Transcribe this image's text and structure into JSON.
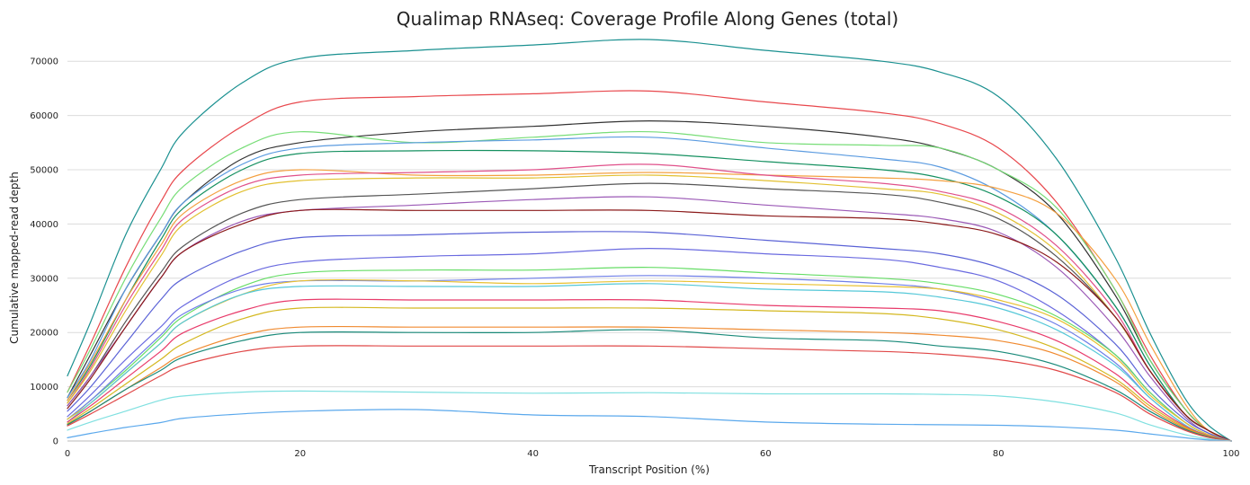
{
  "chart_data": {
    "type": "line",
    "title": "Qualimap RNAseq: Coverage Profile Along Genes (total)",
    "xlabel": "Transcript Position (%)",
    "ylabel": "Cumulative mapped-read depth",
    "xlim": [
      0,
      100
    ],
    "ylim": [
      0,
      75000
    ],
    "xticks": [
      0,
      20,
      40,
      60,
      80,
      100
    ],
    "yticks": [
      0,
      10000,
      20000,
      30000,
      40000,
      50000,
      60000,
      70000
    ],
    "xtick_labels": [
      "0",
      "20",
      "40",
      "60",
      "80",
      "100"
    ],
    "ytick_labels": [
      "0",
      "10000",
      "20000",
      "30000",
      "40000",
      "50000",
      "60000",
      "70000"
    ],
    "grid": "horizontal",
    "legend": "none",
    "x": [
      0,
      2,
      5,
      8,
      10,
      15,
      20,
      30,
      40,
      50,
      60,
      70,
      75,
      80,
      85,
      90,
      93,
      96,
      98,
      100
    ],
    "series": [
      {
        "color": "#1a9090",
        "values": [
          12000,
          22000,
          38000,
          50000,
          57000,
          66000,
          70500,
          72000,
          73000,
          74000,
          72000,
          70000,
          68000,
          63500,
          52000,
          34000,
          20000,
          8000,
          3000,
          0
        ]
      },
      {
        "color": "#e8474c",
        "values": [
          9000,
          18000,
          32000,
          44000,
          50000,
          58000,
          62500,
          63500,
          64000,
          64500,
          62500,
          60500,
          58500,
          54000,
          44000,
          28000,
          16000,
          6000,
          2000,
          0
        ]
      },
      {
        "color": "#333333",
        "values": [
          8000,
          16000,
          28000,
          38000,
          44000,
          52000,
          55000,
          57000,
          58000,
          59000,
          58000,
          56000,
          54000,
          50000,
          42000,
          27000,
          15000,
          6000,
          2000,
          0
        ]
      },
      {
        "color": "#77dd77",
        "values": [
          9000,
          17000,
          30000,
          41000,
          47000,
          54000,
          57000,
          55000,
          56000,
          57000,
          55000,
          54500,
          54000,
          50000,
          43000,
          28000,
          15000,
          6000,
          2000,
          0
        ]
      },
      {
        "color": "#5b9be0",
        "values": [
          8000,
          15000,
          28000,
          38000,
          44000,
          51000,
          54000,
          55000,
          55500,
          56000,
          54000,
          52000,
          50500,
          46000,
          38000,
          25000,
          14000,
          5000,
          2000,
          0
        ]
      },
      {
        "color": "#159060",
        "values": [
          7500,
          14000,
          26000,
          37000,
          43000,
          50000,
          53000,
          53500,
          53500,
          53000,
          51500,
          50000,
          48500,
          45000,
          38000,
          25000,
          14000,
          5000,
          2000,
          0
        ]
      },
      {
        "color": "#f4a040",
        "values": [
          7500,
          14500,
          26000,
          36000,
          42000,
          48000,
          50000,
          49000,
          49000,
          49500,
          49000,
          48500,
          48000,
          46500,
          42000,
          30000,
          18000,
          7000,
          2000,
          0
        ]
      },
      {
        "color": "#e0508a",
        "values": [
          7000,
          13500,
          25000,
          35000,
          41000,
          47000,
          49000,
          49500,
          50000,
          51000,
          49000,
          47500,
          46000,
          43000,
          36000,
          24000,
          13000,
          5000,
          2000,
          0
        ]
      },
      {
        "color": "#e2c030",
        "values": [
          7000,
          13000,
          24000,
          34000,
          40000,
          46000,
          48000,
          48500,
          48500,
          49000,
          48000,
          46500,
          45500,
          42000,
          35000,
          23000,
          13000,
          5000,
          2000,
          0
        ]
      },
      {
        "color": "#555555",
        "values": [
          6500,
          12000,
          22000,
          31000,
          36000,
          42000,
          44500,
          45500,
          46500,
          47500,
          46500,
          45500,
          44000,
          41000,
          34000,
          23000,
          13000,
          5000,
          2000,
          0
        ]
      },
      {
        "color": "#9b59b6",
        "values": [
          6500,
          12000,
          21000,
          30000,
          35000,
          40500,
          42500,
          43500,
          44500,
          45000,
          43500,
          42000,
          41000,
          38500,
          32000,
          21000,
          12000,
          4500,
          1500,
          0
        ]
      },
      {
        "color": "#8b1a1a",
        "values": [
          6000,
          11500,
          21000,
          30000,
          35000,
          40000,
          42500,
          42500,
          42500,
          42500,
          41500,
          41000,
          40000,
          38000,
          33000,
          23000,
          13000,
          5000,
          2000,
          0
        ]
      },
      {
        "color": "#5a62d6",
        "values": [
          5500,
          10000,
          18000,
          26000,
          30000,
          35000,
          37500,
          38000,
          38500,
          38500,
          37000,
          35500,
          34500,
          32000,
          27000,
          18000,
          10000,
          4000,
          1500,
          0
        ]
      },
      {
        "color": "#6a6ae0",
        "values": [
          4500,
          8500,
          15000,
          21000,
          25000,
          30500,
          33000,
          34000,
          34500,
          35500,
          34500,
          33500,
          32000,
          29500,
          24000,
          16000,
          9000,
          3500,
          1200,
          0
        ]
      },
      {
        "color": "#66dd66",
        "values": [
          4000,
          7500,
          13000,
          19000,
          23000,
          28500,
          31000,
          31500,
          31500,
          32000,
          31000,
          30000,
          29000,
          27000,
          23000,
          16000,
          9000,
          3500,
          1200,
          0
        ]
      },
      {
        "color": "#6f7fe8",
        "values": [
          4000,
          7500,
          13500,
          19500,
          23500,
          28000,
          29500,
          29500,
          30000,
          30500,
          30000,
          29000,
          28000,
          25500,
          21500,
          14500,
          8000,
          3000,
          1000,
          0
        ]
      },
      {
        "color": "#e8c030",
        "values": [
          4000,
          7000,
          12500,
          18000,
          22000,
          27000,
          29500,
          29500,
          29000,
          29500,
          29000,
          28500,
          28000,
          26000,
          22500,
          15500,
          8500,
          3500,
          1200,
          0
        ]
      },
      {
        "color": "#55c8d8",
        "values": [
          3500,
          7000,
          12500,
          18000,
          22000,
          27000,
          28500,
          28500,
          28500,
          29000,
          28000,
          27500,
          26500,
          24500,
          20500,
          14000,
          8000,
          3000,
          1000,
          0
        ]
      },
      {
        "color": "#e83a6a",
        "values": [
          3500,
          6500,
          11500,
          16500,
          20000,
          24000,
          26000,
          26000,
          26000,
          26000,
          25000,
          24500,
          24000,
          22000,
          18500,
          12500,
          7000,
          2800,
          1000,
          0
        ]
      },
      {
        "color": "#d4b820",
        "values": [
          3200,
          6000,
          10500,
          15000,
          18000,
          22500,
          24500,
          24500,
          24500,
          24500,
          24000,
          23500,
          22500,
          20500,
          17000,
          11500,
          6500,
          2600,
          900,
          0
        ]
      },
      {
        "color": "#f08a30",
        "values": [
          3000,
          5500,
          9500,
          13500,
          16000,
          19500,
          21000,
          21000,
          21000,
          21000,
          20500,
          20000,
          19500,
          18500,
          16000,
          11000,
          6000,
          2400,
          800,
          0
        ]
      },
      {
        "color": "#1a8a7a",
        "values": [
          3000,
          5500,
          9500,
          13000,
          15500,
          18500,
          20000,
          20000,
          20000,
          20500,
          19000,
          18500,
          17500,
          16500,
          14000,
          9500,
          5500,
          2200,
          800,
          0
        ]
      },
      {
        "color": "#e04848",
        "values": [
          2800,
          5000,
          8500,
          12000,
          14000,
          16500,
          17500,
          17500,
          17500,
          17500,
          17000,
          16500,
          16000,
          15000,
          13000,
          9000,
          5000,
          2000,
          700,
          0
        ]
      },
      {
        "color": "#7fe0e0",
        "values": [
          2000,
          3500,
          5500,
          7500,
          8300,
          9000,
          9200,
          9000,
          8800,
          8900,
          8700,
          8700,
          8600,
          8300,
          7200,
          5200,
          3000,
          1200,
          400,
          0
        ]
      },
      {
        "color": "#5aa8ec",
        "values": [
          600,
          1400,
          2500,
          3400,
          4200,
          5000,
          5500,
          5800,
          4800,
          4500,
          3500,
          3100,
          3000,
          2900,
          2600,
          2000,
          1300,
          600,
          200,
          0
        ]
      }
    ]
  }
}
